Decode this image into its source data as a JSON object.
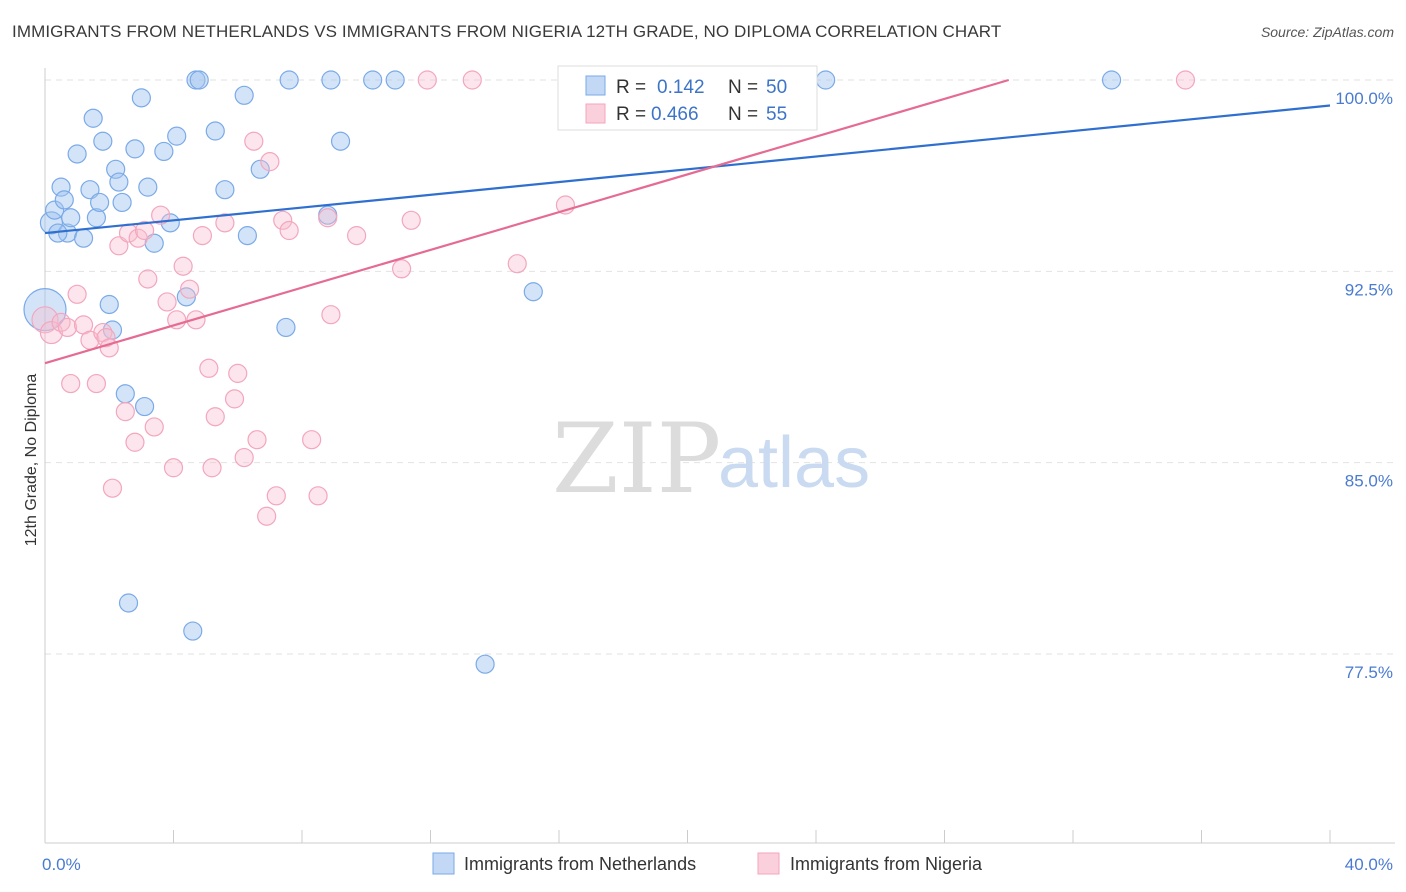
{
  "title": "IMMIGRANTS FROM NETHERLANDS VS IMMIGRANTS FROM NIGERIA 12TH GRADE, NO DIPLOMA CORRELATION CHART",
  "source": "Source: ZipAtlas.com",
  "watermark": {
    "zip": "ZIP",
    "atlas": "atlas"
  },
  "legend": {
    "r_label": "R =",
    "n_label": "N =",
    "rows": [
      {
        "r": "0.142",
        "n": "50"
      },
      {
        "r": "0.466",
        "n": "55"
      }
    ]
  },
  "chart_data": {
    "type": "scatter",
    "title": "IMMIGRANTS FROM NETHERLANDS VS IMMIGRANTS FROM NIGERIA 12TH GRADE, NO DIPLOMA CORRELATION CHART",
    "xlabel": "",
    "ylabel": "12th Grade, No Diploma",
    "xlim": [
      0,
      40
    ],
    "ylim": [
      70.5,
      101.5
    ],
    "x_tick_labels": [
      "0.0%",
      "40.0%"
    ],
    "y_ticks": [
      77.5,
      85.0,
      92.5,
      100.0
    ],
    "y_tick_labels": [
      "77.5%",
      "85.0%",
      "92.5%",
      "100.0%"
    ],
    "grid": "horizontal dashed",
    "legend_position": "top-center",
    "colors": {
      "netherlands": "#7aaae8",
      "nigeria": "#f3a6bd",
      "netherlands_line": "#2f6fcf",
      "nigeria_line": "#e56b93"
    },
    "series": [
      {
        "name": "Immigrants from Netherlands",
        "r": 0.142,
        "n": 50,
        "trend": {
          "x": [
            0,
            40
          ],
          "y": [
            94.0,
            99.0
          ]
        },
        "points": [
          [
            0.0,
            91.0,
            22
          ],
          [
            0.2,
            94.4,
            12
          ],
          [
            0.3,
            94.9,
            10
          ],
          [
            0.5,
            95.8,
            10
          ],
          [
            0.6,
            95.3,
            10
          ],
          [
            0.7,
            94.0,
            10
          ],
          [
            0.8,
            94.6,
            10
          ],
          [
            1.0,
            97.1,
            10
          ],
          [
            1.2,
            93.8,
            10
          ],
          [
            1.4,
            95.7,
            10
          ],
          [
            1.5,
            98.5,
            10
          ],
          [
            1.6,
            94.6,
            10
          ],
          [
            1.7,
            95.2,
            10
          ],
          [
            1.8,
            97.6,
            10
          ],
          [
            2.0,
            91.2,
            10
          ],
          [
            2.1,
            90.2,
            10
          ],
          [
            2.2,
            96.5,
            10
          ],
          [
            2.3,
            96.0,
            10
          ],
          [
            2.4,
            95.2,
            10
          ],
          [
            2.5,
            87.7,
            10
          ],
          [
            2.6,
            79.5,
            10
          ],
          [
            2.8,
            97.3,
            10
          ],
          [
            3.0,
            99.3,
            10
          ],
          [
            3.1,
            87.2,
            10
          ],
          [
            3.2,
            95.8,
            10
          ],
          [
            3.4,
            93.6,
            10
          ],
          [
            3.7,
            97.2,
            10
          ],
          [
            3.9,
            94.4,
            10
          ],
          [
            4.1,
            97.8,
            10
          ],
          [
            4.4,
            91.5,
            10
          ],
          [
            4.6,
            78.4,
            10
          ],
          [
            4.7,
            100.0,
            10
          ],
          [
            4.8,
            100.0,
            10
          ],
          [
            5.3,
            98.0,
            10
          ],
          [
            5.6,
            95.7,
            10
          ],
          [
            6.2,
            99.4,
            10
          ],
          [
            6.3,
            93.9,
            10
          ],
          [
            6.7,
            96.5,
            10
          ],
          [
            7.5,
            90.3,
            10
          ],
          [
            7.6,
            100.0,
            10
          ],
          [
            8.8,
            94.7,
            10
          ],
          [
            8.9,
            100.0,
            10
          ],
          [
            9.2,
            97.6,
            10
          ],
          [
            10.2,
            100.0,
            10
          ],
          [
            10.9,
            100.0,
            10
          ],
          [
            13.7,
            77.1,
            10
          ],
          [
            15.2,
            91.7,
            10
          ],
          [
            24.3,
            100.0,
            10
          ],
          [
            33.2,
            100.0,
            10
          ],
          [
            0.4,
            94.0,
            10
          ]
        ]
      },
      {
        "name": "Immigrants from Nigeria",
        "r": 0.466,
        "n": 55,
        "trend": {
          "x": [
            0,
            30
          ],
          "y": [
            88.9,
            100.0
          ]
        },
        "points": [
          [
            0.0,
            90.6,
            14
          ],
          [
            0.2,
            90.1,
            12
          ],
          [
            0.5,
            90.5,
            10
          ],
          [
            0.7,
            90.3,
            10
          ],
          [
            0.8,
            88.1,
            10
          ],
          [
            1.0,
            91.6,
            10
          ],
          [
            1.2,
            90.4,
            10
          ],
          [
            1.4,
            89.8,
            10
          ],
          [
            1.6,
            88.1,
            10
          ],
          [
            1.8,
            90.1,
            10
          ],
          [
            1.9,
            89.9,
            10
          ],
          [
            2.0,
            89.5,
            10
          ],
          [
            2.1,
            84.0,
            10
          ],
          [
            2.3,
            93.5,
            10
          ],
          [
            2.5,
            87.0,
            10
          ],
          [
            2.6,
            94.0,
            10
          ],
          [
            2.8,
            85.8,
            10
          ],
          [
            2.9,
            93.8,
            10
          ],
          [
            3.1,
            94.1,
            10
          ],
          [
            3.2,
            92.2,
            10
          ],
          [
            3.4,
            86.4,
            10
          ],
          [
            3.6,
            94.7,
            10
          ],
          [
            3.8,
            91.3,
            10
          ],
          [
            4.0,
            84.8,
            10
          ],
          [
            4.1,
            90.6,
            10
          ],
          [
            4.3,
            92.7,
            10
          ],
          [
            4.5,
            91.8,
            10
          ],
          [
            4.7,
            90.6,
            10
          ],
          [
            4.9,
            93.9,
            10
          ],
          [
            5.1,
            88.7,
            10
          ],
          [
            5.2,
            84.8,
            10
          ],
          [
            5.3,
            86.8,
            10
          ],
          [
            5.6,
            94.4,
            10
          ],
          [
            5.9,
            87.5,
            10
          ],
          [
            6.0,
            88.5,
            10
          ],
          [
            6.2,
            85.2,
            10
          ],
          [
            6.5,
            97.6,
            10
          ],
          [
            6.6,
            85.9,
            10
          ],
          [
            6.9,
            82.9,
            10
          ],
          [
            7.0,
            96.8,
            10
          ],
          [
            7.2,
            83.7,
            10
          ],
          [
            7.4,
            94.5,
            10
          ],
          [
            7.6,
            94.1,
            10
          ],
          [
            8.3,
            85.9,
            10
          ],
          [
            8.5,
            83.7,
            10
          ],
          [
            8.8,
            94.6,
            10
          ],
          [
            8.9,
            90.8,
            10
          ],
          [
            9.7,
            93.9,
            10
          ],
          [
            11.1,
            92.6,
            10
          ],
          [
            11.4,
            94.5,
            10
          ],
          [
            11.9,
            100.0,
            10
          ],
          [
            13.3,
            100.0,
            10
          ],
          [
            14.7,
            92.8,
            10
          ],
          [
            16.2,
            95.1,
            10
          ],
          [
            35.5,
            100.0,
            10
          ]
        ]
      }
    ]
  },
  "bottom_legend": [
    {
      "label": "Immigrants from Netherlands"
    },
    {
      "label": "Immigrants from Nigeria"
    }
  ]
}
